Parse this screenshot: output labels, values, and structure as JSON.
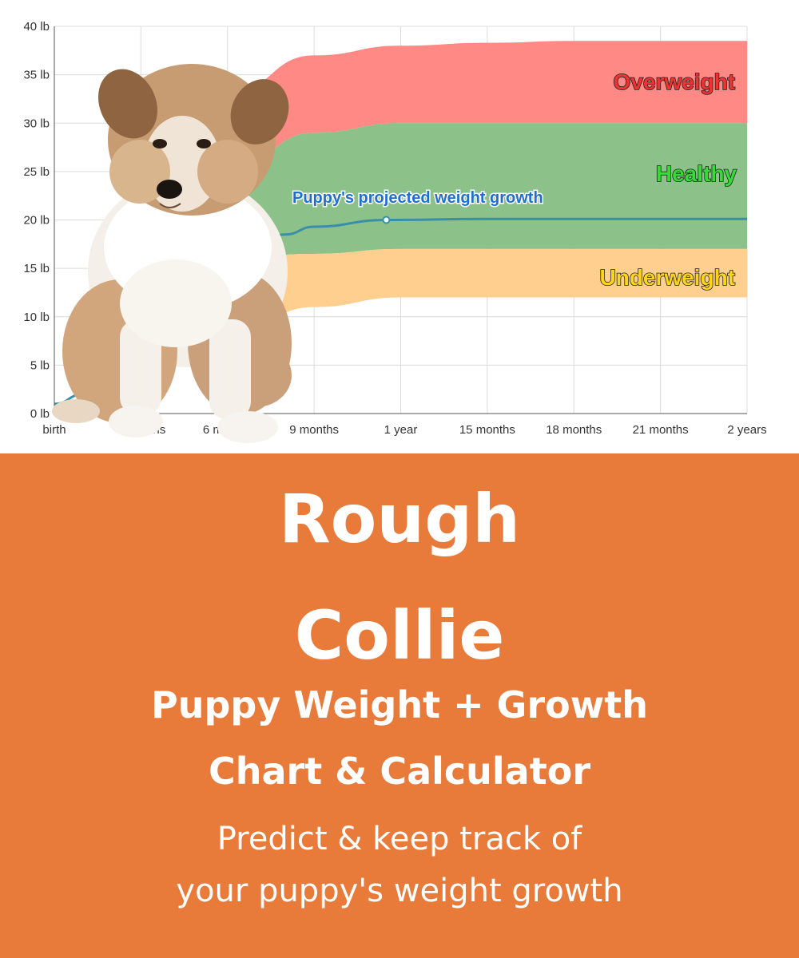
{
  "chart_data": {
    "type": "area",
    "x_tick_labels": [
      "birth",
      "3 months",
      "6 months",
      "9 months",
      "1 year",
      "15 months",
      "18 months",
      "21 months",
      "2 years"
    ],
    "x_tick_months": [
      0,
      3,
      6,
      9,
      12,
      15,
      18,
      21,
      24
    ],
    "y_tick_labels": [
      "0 lb",
      "5 lb",
      "10 lb",
      "15 lb",
      "20 lb",
      "25 lb",
      "30 lb",
      "35 lb",
      "40 lb"
    ],
    "ylim": [
      0,
      40
    ],
    "xlim": [
      0,
      24
    ],
    "grid": true,
    "bands": [
      {
        "name": "Overweight",
        "color": "#ff8a85",
        "months": [
          6,
          9,
          12,
          15,
          18,
          21,
          24
        ],
        "lower": [
          25,
          29,
          30,
          30,
          30,
          30,
          30
        ],
        "upper": [
          33,
          37,
          38,
          38.3,
          38.5,
          38.5,
          38.5
        ]
      },
      {
        "name": "Healthy",
        "color": "#8dc18a",
        "months": [
          6,
          9,
          12,
          15,
          18,
          21,
          24
        ],
        "lower": [
          16,
          16.5,
          17,
          17,
          17,
          17,
          17
        ],
        "upper": [
          25,
          29,
          30,
          30,
          30,
          30,
          30
        ]
      },
      {
        "name": "Underweight",
        "color": "#ffcf8f",
        "months": [
          6,
          9,
          12,
          15,
          18,
          21,
          24
        ],
        "lower": [
          8,
          11,
          12,
          12,
          12,
          12,
          12
        ],
        "upper": [
          16,
          16.5,
          17,
          17,
          17,
          17,
          17
        ]
      }
    ],
    "series": [
      {
        "name": "Puppy's projected weight growth",
        "color": "#3a8fa8",
        "months": [
          0,
          1,
          2,
          3,
          4,
          6,
          8,
          9,
          11.5,
          15,
          18,
          21,
          24
        ],
        "values": [
          1,
          2,
          4,
          7,
          10,
          15,
          18.5,
          19.3,
          20,
          20.1,
          20.1,
          20.1,
          20.1
        ],
        "marker_month": 11.5
      }
    ],
    "labels": {
      "overweight": {
        "text": "Overweight",
        "color": "#ee3333"
      },
      "healthy": {
        "text": "Healthy",
        "color": "#33dd33"
      },
      "underweight": {
        "text": "Underweight",
        "color": "#ffd51a"
      },
      "growth": {
        "text": "Puppy's projected weight growth"
      }
    }
  },
  "banner": {
    "color": "#e87a3a",
    "breed_line1": "Rough",
    "breed_line2": "Collie",
    "subtitle_line1": "Puppy Weight + Growth",
    "subtitle_line2": "Chart & Calculator",
    "tagline_line1": "Predict & keep track of",
    "tagline_line2": "your puppy's weight growth"
  },
  "image": {
    "description_icon": "puppy-photo"
  }
}
